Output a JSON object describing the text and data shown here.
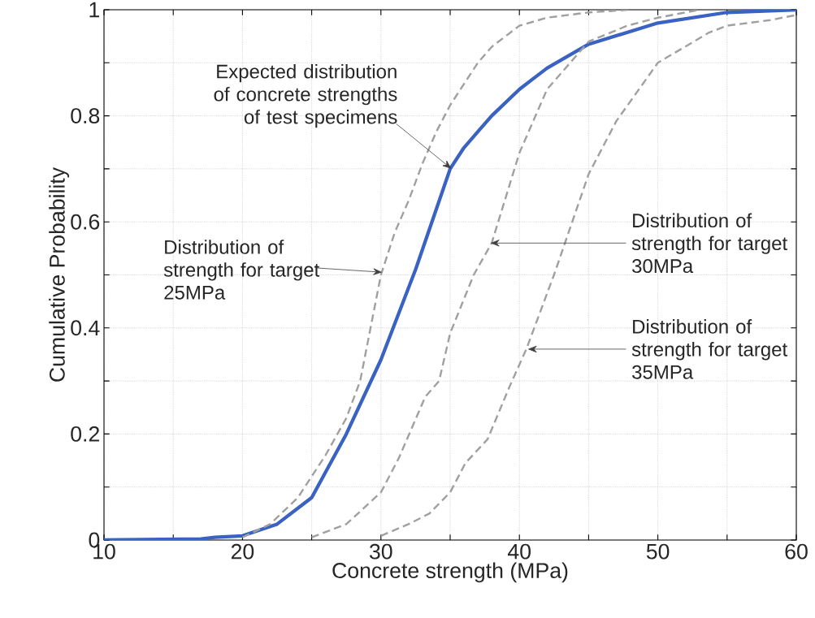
{
  "chart_data": {
    "type": "line",
    "xlabel": "Concrete strength (MPa)",
    "ylabel": "Cumulative Probability",
    "xlim": [
      10,
      60
    ],
    "ylim": [
      0,
      1
    ],
    "xticks": [
      10,
      {
        "value": 15,
        "label": null
      },
      20,
      {
        "value": 25,
        "label": null
      },
      30,
      {
        "value": 35,
        "label": null
      },
      40,
      {
        "value": 45,
        "label": null
      },
      50,
      {
        "value": 55,
        "label": null
      },
      60
    ],
    "yticks": [
      0,
      {
        "value": 0.1,
        "label": null
      },
      0.2,
      {
        "value": 0.3,
        "label": null
      },
      0.4,
      {
        "value": 0.5,
        "label": null
      },
      0.6,
      {
        "value": 0.7,
        "label": null
      },
      0.8,
      {
        "value": 0.9,
        "label": null
      },
      1
    ],
    "grid": true,
    "series": [
      {
        "color": "#3a62c2",
        "line_style": "solid",
        "x": [
          10,
          17,
          18,
          20,
          22.5,
          25,
          27.5,
          30,
          32.5,
          35,
          36,
          37,
          38,
          40,
          41,
          42,
          45,
          50,
          55,
          60
        ],
        "values": [
          0,
          0.002,
          0.005,
          0.008,
          0.03,
          0.08,
          0.2,
          0.34,
          0.51,
          0.7,
          0.74,
          0.77,
          0.8,
          0.85,
          0.87,
          0.89,
          0.935,
          0.975,
          0.995,
          1
        ]
      },
      {
        "color": "#a0a0a0",
        "line_style": "dashed",
        "x": [
          20,
          22,
          24,
          25,
          26,
          27.5,
          28.5,
          30,
          31,
          32,
          33,
          34,
          35,
          36,
          37,
          38,
          40,
          42,
          45,
          48
        ],
        "values": [
          0.005,
          0.03,
          0.08,
          0.12,
          0.16,
          0.23,
          0.3,
          0.5,
          0.58,
          0.64,
          0.71,
          0.77,
          0.82,
          0.86,
          0.9,
          0.93,
          0.97,
          0.985,
          0.995,
          1
        ]
      },
      {
        "color": "#a0a0a0",
        "line_style": "dashed",
        "x": [
          25,
          27.5,
          30,
          31.3,
          33.2,
          34.2,
          35,
          36.7,
          38,
          40,
          42,
          45,
          47.8,
          50,
          53
        ],
        "values": [
          0.005,
          0.03,
          0.09,
          0.155,
          0.27,
          0.3,
          0.39,
          0.5,
          0.56,
          0.73,
          0.85,
          0.94,
          0.97,
          0.985,
          1
        ]
      },
      {
        "color": "#a0a0a0",
        "line_style": "dashed",
        "x": [
          30,
          32,
          33.5,
          35,
          36.1,
          37.7,
          39.3,
          40.5,
          42.5,
          45,
          47,
          50,
          53.7,
          55,
          58,
          60
        ],
        "values": [
          0.008,
          0.03,
          0.05,
          0.09,
          0.145,
          0.19,
          0.29,
          0.36,
          0.5,
          0.69,
          0.79,
          0.9,
          0.957,
          0.97,
          0.98,
          0.99
        ]
      }
    ],
    "annotations": [
      {
        "text": "Expected distribution of concrete strengths of test specimens",
        "x": 35.1,
        "y": 0.7
      },
      {
        "text": "Distribution of strength for target 25MPa",
        "x": 30.1,
        "y": 0.505
      },
      {
        "text": "Distribution of strength for target 30MPa",
        "x": 37.9,
        "y": 0.56
      },
      {
        "text": "Distribution of strength for target 35MPa",
        "x": 40.6,
        "y": 0.36
      }
    ]
  }
}
